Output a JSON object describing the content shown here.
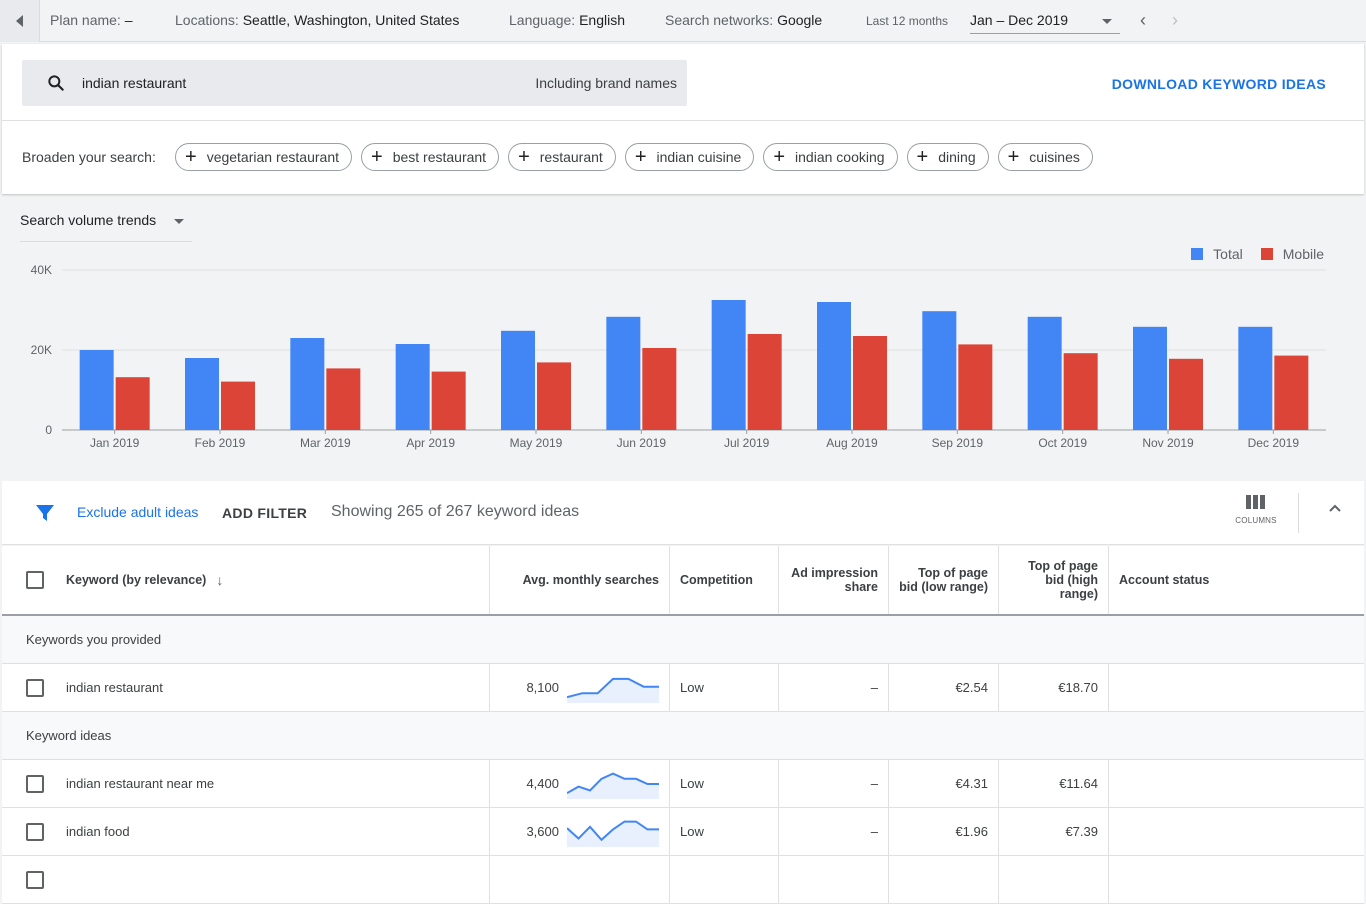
{
  "topbar": {
    "plan_label": "Plan name:",
    "plan_value": "–",
    "locations_label": "Locations:",
    "locations_value": "Seattle, Washington, United States",
    "language_label": "Language:",
    "language_value": "English",
    "networks_label": "Search networks:",
    "networks_value": "Google",
    "period_label": "Last 12 months",
    "period_value": "Jan – Dec 2019"
  },
  "search": {
    "query": "indian restaurant",
    "brand_option": "Including brand names",
    "download_label": "DOWNLOAD KEYWORD IDEAS"
  },
  "broaden": {
    "label": "Broaden your search:",
    "chips": [
      "vegetarian restaurant",
      "best restaurant",
      "restaurant",
      "indian cuisine",
      "indian cooking",
      "dining",
      "cuisines"
    ]
  },
  "trend_select_label": "Search volume trends",
  "chart_data": {
    "type": "bar",
    "categories": [
      "Jan 2019",
      "Feb 2019",
      "Mar 2019",
      "Apr 2019",
      "May 2019",
      "Jun 2019",
      "Jul 2019",
      "Aug 2019",
      "Sep 2019",
      "Oct 2019",
      "Nov 2019",
      "Dec 2019"
    ],
    "series": [
      {
        "name": "Total",
        "color": "#4285f4",
        "values": [
          20000,
          18000,
          23000,
          21500,
          24800,
          28300,
          32500,
          32000,
          29700,
          28300,
          25800,
          25800
        ]
      },
      {
        "name": "Mobile",
        "color": "#db4437",
        "values": [
          13200,
          12100,
          15400,
          14600,
          16900,
          20500,
          24000,
          23500,
          21400,
          19200,
          17800,
          18600
        ]
      }
    ],
    "y_ticks": [
      "0",
      "20K",
      "40K"
    ],
    "ylim": [
      0,
      40000
    ],
    "grid": true,
    "legend": "top-right"
  },
  "filters": {
    "exclude_label": "Exclude adult ideas",
    "add_filter_label": "ADD FILTER",
    "showing_text": "Showing 265 of 267 keyword ideas",
    "columns_label": "COLUMNS"
  },
  "table": {
    "headers": {
      "keyword": "Keyword (by relevance)",
      "avg": "Avg. monthly searches",
      "competition": "Competition",
      "ad_share": "Ad impression share",
      "bid_low": "Top of page bid (low range)",
      "bid_high": "Top of page bid (high range)",
      "status": "Account status"
    },
    "group_provided": "Keywords you provided",
    "group_ideas": "Keyword ideas",
    "rows": [
      {
        "keyword": "indian restaurant",
        "avg": "8,100",
        "competition": "Low",
        "ad_share": "–",
        "bid_low": "€2.54",
        "bid_high": "€18.70",
        "spark": [
          0.85,
          0.7,
          0.7,
          0.15,
          0.15,
          0.45,
          0.45
        ]
      },
      {
        "keyword": "indian restaurant near me",
        "avg": "4,400",
        "competition": "Low",
        "ad_share": "–",
        "bid_low": "€4.31",
        "bid_high": "€11.64",
        "spark": [
          0.85,
          0.6,
          0.75,
          0.3,
          0.1,
          0.3,
          0.3,
          0.5,
          0.5
        ]
      },
      {
        "keyword": "indian food",
        "avg": "3,600",
        "competition": "Low",
        "ad_share": "–",
        "bid_low": "€1.96",
        "bid_high": "€7.39",
        "spark": [
          0.35,
          0.75,
          0.3,
          0.8,
          0.4,
          0.1,
          0.1,
          0.4,
          0.4
        ]
      }
    ]
  }
}
